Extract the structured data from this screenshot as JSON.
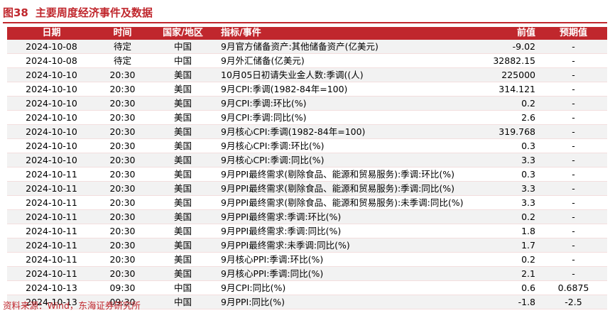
{
  "figure": {
    "number": "图38",
    "title": "主要周度经济事件及数据"
  },
  "table": {
    "headers": [
      "日期",
      "时间",
      "国家/地区",
      "指标/事件",
      "前值",
      "预期值"
    ],
    "rows": [
      [
        "2024-10-08",
        "待定",
        "中国",
        "9月官方储备资产:其他储备资产(亿美元)",
        "-9.02",
        "-"
      ],
      [
        "2024-10-08",
        "待定",
        "中国",
        "9月外汇储备(亿美元)",
        "32882.15",
        "-"
      ],
      [
        "2024-10-10",
        "20:30",
        "美国",
        "10月05日初请失业金人数:季调((人)",
        "225000",
        "-"
      ],
      [
        "2024-10-10",
        "20:30",
        "美国",
        "9月CPI:季调(1982-84年=100)",
        "314.121",
        "-"
      ],
      [
        "2024-10-10",
        "20:30",
        "美国",
        "9月CPI:季调:环比(%)",
        "0.2",
        "-"
      ],
      [
        "2024-10-10",
        "20:30",
        "美国",
        "9月CPI:季调:同比(%)",
        "2.6",
        "-"
      ],
      [
        "2024-10-10",
        "20:30",
        "美国",
        "9月核心CPI:季调(1982-84年=100)",
        "319.768",
        "-"
      ],
      [
        "2024-10-10",
        "20:30",
        "美国",
        "9月核心CPI:季调:环比(%)",
        "0.3",
        "-"
      ],
      [
        "2024-10-10",
        "20:30",
        "美国",
        "9月核心CPI:季调:同比(%)",
        "3.3",
        "-"
      ],
      [
        "2024-10-11",
        "20:30",
        "美国",
        "9月PPI最终需求(剔除食品、能源和贸易服务):季调:环比(%)",
        "0.3",
        "-"
      ],
      [
        "2024-10-11",
        "20:30",
        "美国",
        "9月PPI最终需求(剔除食品、能源和贸易服务):季调:同比(%)",
        "3.3",
        "-"
      ],
      [
        "2024-10-11",
        "20:30",
        "美国",
        "9月PPI最终需求(剔除食品、能源和贸易服务):未季调:同比(%)",
        "3.3",
        "-"
      ],
      [
        "2024-10-11",
        "20:30",
        "美国",
        "9月PPI最终需求:季调:环比(%)",
        "0.2",
        "-"
      ],
      [
        "2024-10-11",
        "20:30",
        "美国",
        "9月PPI最终需求:季调:同比(%)",
        "1.8",
        "-"
      ],
      [
        "2024-10-11",
        "20:30",
        "美国",
        "9月PPI最终需求:未季调:同比(%)",
        "1.7",
        "-"
      ],
      [
        "2024-10-11",
        "20:30",
        "美国",
        "9月核心PPI:季调:环比(%)",
        "0.2",
        "-"
      ],
      [
        "2024-10-11",
        "20:30",
        "美国",
        "9月核心PPI:季调:同比(%)",
        "2.1",
        "-"
      ],
      [
        "2024-10-13",
        "09:30",
        "中国",
        "9月CPI:同比(%)",
        "0.6",
        "0.6875"
      ],
      [
        "2024-10-13",
        "09:30",
        "中国",
        "9月PPI:同比(%)",
        "-1.8",
        "-2.5"
      ]
    ]
  },
  "source": "资料来源：Wind，东海证券研究所",
  "colors": {
    "accent": "#c0272d",
    "row_alt": "#f2f2f2"
  }
}
